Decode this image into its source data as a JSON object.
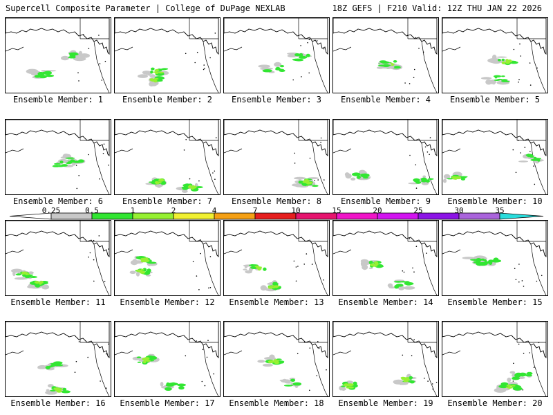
{
  "header": {
    "title_left": "Supercell Composite Parameter | College of DuPage NEXLAB",
    "title_right": "18Z GEFS | F210 Valid: 12Z THU JAN 22 2026"
  },
  "members": [
    {
      "label": "Ensemble Member: 1"
    },
    {
      "label": "Ensemble Member: 2"
    },
    {
      "label": "Ensemble Member: 3"
    },
    {
      "label": "Ensemble Member: 4"
    },
    {
      "label": "Ensemble Member: 5"
    },
    {
      "label": "Ensemble Member: 6"
    },
    {
      "label": "Ensemble Member: 7"
    },
    {
      "label": "Ensemble Member: 8"
    },
    {
      "label": "Ensemble Member: 9"
    },
    {
      "label": "Ensemble Member: 10"
    },
    {
      "label": "Ensemble Member: 11"
    },
    {
      "label": "Ensemble Member: 12"
    },
    {
      "label": "Ensemble Member: 13"
    },
    {
      "label": "Ensemble Member: 14"
    },
    {
      "label": "Ensemble Member: 15"
    },
    {
      "label": "Ensemble Member: 16"
    },
    {
      "label": "Ensemble Member: 17"
    },
    {
      "label": "Ensemble Member: 18"
    },
    {
      "label": "Ensemble Member: 19"
    },
    {
      "label": "Ensemble Member: 20"
    }
  ],
  "colorbar": {
    "ticks": [
      "0.25",
      "0.5",
      "1",
      "2",
      "4",
      "7",
      "10",
      "15",
      "20",
      "25",
      "30",
      "35"
    ],
    "colors": [
      "#c8c8c8",
      "#32e632",
      "#96f032",
      "#f0f032",
      "#f5a014",
      "#e61e1e",
      "#e6146e",
      "#f014c8",
      "#d214f0",
      "#8c14e6",
      "#aa64dc",
      "#28dcdc"
    ]
  }
}
